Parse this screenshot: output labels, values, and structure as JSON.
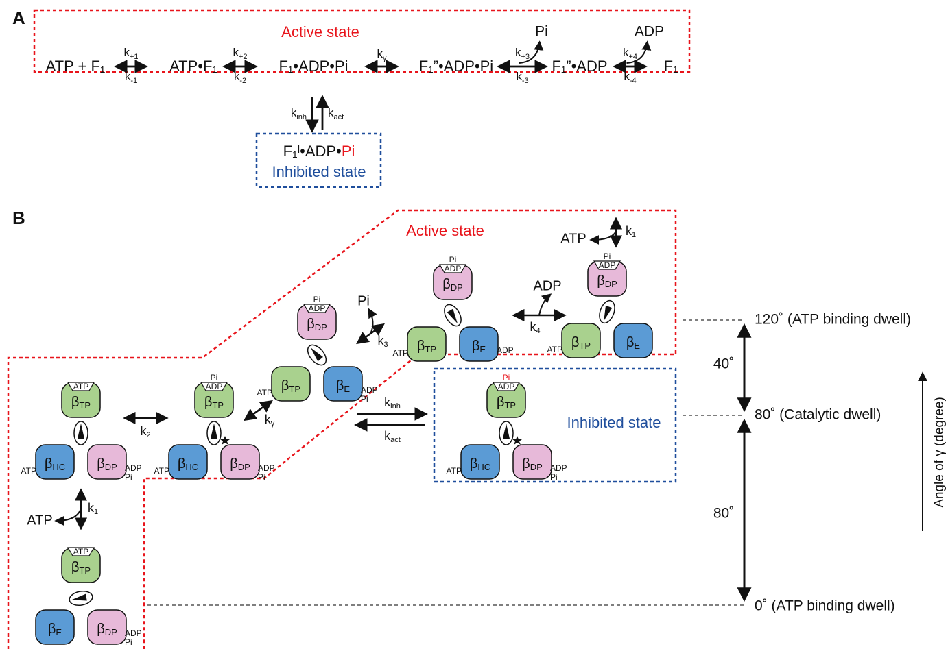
{
  "panel_a": {
    "label": "A",
    "active_state": "Active state",
    "species": [
      "ATP + F₁",
      "ATP•F₁",
      "F₁•ADP•Pi",
      "F₁”•ADP•Pi",
      "F₁”•ADP",
      "F₁"
    ],
    "steps": [
      {
        "forward": {
          "base": "k",
          "sub": "+1"
        },
        "backward": {
          "base": "k",
          "sub": "-1"
        }
      },
      {
        "forward": {
          "base": "k",
          "sub": "+2"
        },
        "backward": {
          "base": "k",
          "sub": "-2"
        }
      },
      {
        "forward": {
          "base": "k",
          "sub": "γ"
        }
      },
      {
        "forward": {
          "base": "k",
          "sub": "+3"
        },
        "backward": {
          "base": "k",
          "sub": "-3"
        },
        "released": "Pi"
      },
      {
        "forward": {
          "base": "k",
          "sub": "+4"
        },
        "backward": {
          "base": "k",
          "sub": "-4"
        },
        "released": "ADP"
      }
    ],
    "inhibition": {
      "k_inh": {
        "base": "k",
        "sub": "inh"
      },
      "k_act": {
        "base": "k",
        "sub": "act"
      }
    },
    "inhibited": {
      "species": "F₁ᴵ•ADP•",
      "pi": "Pi",
      "label": "Inhibited state"
    }
  },
  "panel_b": {
    "label": "B",
    "active_state": "Active state",
    "inhibited_state": "Inhibited state",
    "states": [
      {
        "subunits": [
          {
            "label": {
              "base": "β",
              "sub": "TP"
            },
            "nucleotides": [
              "ATP"
            ]
          },
          {
            "label": {
              "base": "β",
              "sub": "HC"
            },
            "nucleotides": [
              "ATP"
            ]
          },
          {
            "label": {
              "base": "β",
              "sub": "DP"
            },
            "nucleotides": [
              "ADP",
              "Pi"
            ]
          }
        ]
      },
      {
        "subunits": [
          {
            "label": {
              "base": "β",
              "sub": "TP"
            },
            "nucleotides": [
              "Pi",
              "ADP"
            ]
          },
          {
            "label": {
              "base": "β",
              "sub": "HC"
            },
            "nucleotides": [
              "ATP"
            ]
          },
          {
            "label": {
              "base": "β",
              "sub": "DP"
            },
            "nucleotides": [
              "ADP",
              "Pi"
            ]
          }
        ]
      },
      {
        "subunits": [
          {
            "label": {
              "base": "β",
              "sub": "DP"
            },
            "nucleotides": [
              "Pi",
              "ADP"
            ]
          },
          {
            "label": {
              "base": "β",
              "sub": "TP"
            },
            "nucleotides": [
              "ATP"
            ]
          },
          {
            "label": {
              "base": "β",
              "sub": "E"
            },
            "nucleotides": [
              "ADP",
              "Pi"
            ]
          }
        ]
      },
      {
        "subunits": [
          {
            "label": {
              "base": "β",
              "sub": "DP"
            },
            "nucleotides": [
              "Pi",
              "ADP"
            ]
          },
          {
            "label": {
              "base": "β",
              "sub": "TP"
            },
            "nucleotides": [
              "ATP"
            ]
          },
          {
            "label": {
              "base": "β",
              "sub": "E"
            },
            "nucleotides": [
              "ADP"
            ]
          }
        ]
      },
      {
        "subunits": [
          {
            "label": {
              "base": "β",
              "sub": "DP"
            },
            "nucleotides": [
              "Pi",
              "ADP"
            ]
          },
          {
            "label": {
              "base": "β",
              "sub": "TP"
            },
            "nucleotides": [
              "ATP"
            ]
          },
          {
            "label": {
              "base": "β",
              "sub": "E"
            },
            "nucleotides": []
          }
        ]
      },
      {
        "subunits": [
          {
            "label": {
              "base": "β",
              "sub": "TP"
            },
            "nucleotides": [
              "Pi",
              "ADP"
            ]
          },
          {
            "label": {
              "base": "β",
              "sub": "HC"
            },
            "nucleotides": [
              "ATP"
            ]
          },
          {
            "label": {
              "base": "β",
              "sub": "DP"
            },
            "nucleotides": [
              "ADP",
              "Pi"
            ]
          }
        ]
      },
      {
        "subunits": [
          {
            "label": {
              "base": "β",
              "sub": "TP"
            },
            "nucleotides": [
              "ATP"
            ]
          },
          {
            "label": {
              "base": "β",
              "sub": "E"
            },
            "nucleotides": []
          },
          {
            "label": {
              "base": "β",
              "sub": "DP"
            },
            "nucleotides": [
              "ADP",
              "Pi"
            ]
          }
        ]
      }
    ],
    "steps": [
      {
        "rate": {
          "base": "k",
          "sub": "1"
        },
        "ligand": "ATP"
      },
      {
        "rate": {
          "base": "k",
          "sub": "2"
        }
      },
      {
        "rate": {
          "base": "k",
          "sub": "γ"
        }
      },
      {
        "rate": {
          "base": "k",
          "sub": "3"
        },
        "ligand": "Pi"
      },
      {
        "rate": {
          "base": "k",
          "sub": "4"
        },
        "ligand": "ADP"
      },
      {
        "rate": {
          "base": "k",
          "sub": "1"
        },
        "ligand": "ATP"
      }
    ],
    "inhibition": {
      "k_inh": {
        "base": "k",
        "sub": "inh"
      },
      "k_act": {
        "base": "k",
        "sub": "act"
      }
    },
    "angles": {
      "levels": [
        "120˚ (ATP binding dwell)",
        "80˚ (Catalytic dwell)",
        "0˚ (ATP binding dwell)"
      ],
      "intervals": [
        "40˚",
        "80˚"
      ],
      "axis_label": "Angle of γ (degree)"
    }
  }
}
